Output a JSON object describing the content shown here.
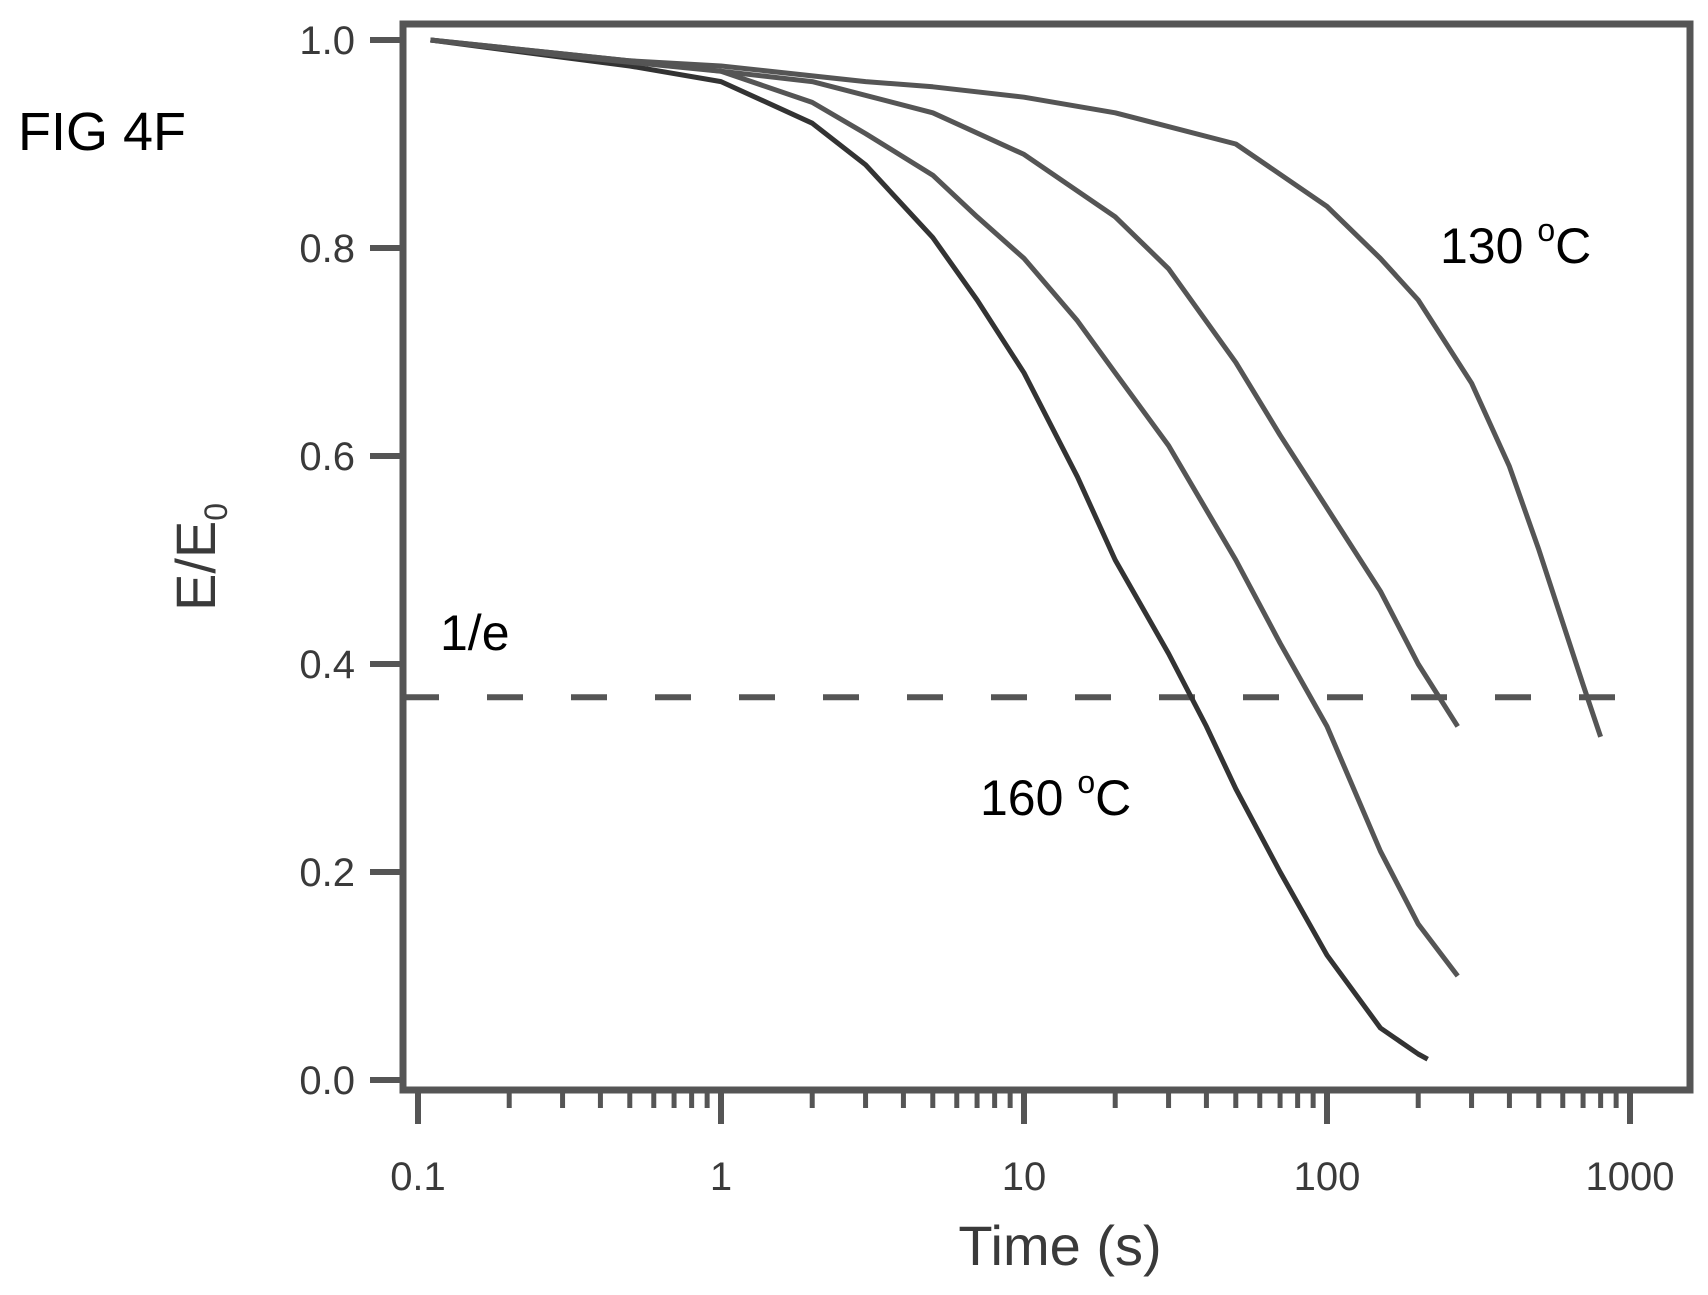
{
  "figure_label": "FIG 4F",
  "chart_data": {
    "type": "line",
    "title": "",
    "xlabel": "Time (s)",
    "ylabel": "E/E",
    "ylabel_subscript": "0",
    "xscale": "log",
    "xlim": [
      0.1,
      1000
    ],
    "ylim": [
      0.0,
      1.0
    ],
    "x_ticks": [
      0.1,
      1,
      10,
      100,
      1000
    ],
    "x_tick_labels": [
      "0.1",
      "1",
      "10",
      "100",
      "1000"
    ],
    "y_ticks": [
      0.0,
      0.2,
      0.4,
      0.6,
      0.8,
      1.0
    ],
    "y_tick_labels": [
      "0.0",
      "0.2",
      "0.4",
      "0.6",
      "0.8",
      "1.0"
    ],
    "grid": false,
    "legend": "none",
    "reference_line": {
      "y": 0.368,
      "style": "dashed",
      "label": "1/e"
    },
    "annotations": {
      "high_temp": {
        "text": "160 ",
        "sup": "o",
        "suffix": "C"
      },
      "low_temp": {
        "text": "130 ",
        "sup": "o",
        "suffix": "C"
      }
    },
    "series": [
      {
        "x": [
          0.11,
          0.2,
          0.5,
          1,
          2,
          3,
          5,
          7,
          10,
          15,
          20,
          30,
          40,
          50,
          70,
          100,
          150,
          200,
          215
        ],
        "y": [
          1.0,
          0.99,
          0.975,
          0.96,
          0.92,
          0.88,
          0.81,
          0.75,
          0.68,
          0.58,
          0.5,
          0.41,
          0.34,
          0.28,
          0.2,
          0.12,
          0.05,
          0.025,
          0.02
        ]
      },
      {
        "x": [
          0.11,
          0.3,
          1,
          2,
          3,
          5,
          7,
          10,
          15,
          20,
          30,
          50,
          70,
          100,
          150,
          200,
          270
        ],
        "y": [
          1.0,
          0.985,
          0.97,
          0.94,
          0.91,
          0.87,
          0.83,
          0.79,
          0.73,
          0.68,
          0.61,
          0.5,
          0.42,
          0.34,
          0.22,
          0.15,
          0.1
        ]
      },
      {
        "x": [
          0.11,
          0.5,
          1,
          2,
          5,
          10,
          20,
          30,
          50,
          70,
          100,
          150,
          200,
          270
        ],
        "y": [
          1.0,
          0.98,
          0.97,
          0.96,
          0.93,
          0.89,
          0.83,
          0.78,
          0.69,
          0.62,
          0.55,
          0.47,
          0.4,
          0.34
        ]
      },
      {
        "x": [
          0.11,
          0.5,
          1,
          3,
          5,
          10,
          20,
          50,
          100,
          150,
          200,
          300,
          400,
          500,
          700,
          800
        ],
        "y": [
          1.0,
          0.98,
          0.975,
          0.96,
          0.955,
          0.945,
          0.93,
          0.9,
          0.84,
          0.79,
          0.75,
          0.67,
          0.59,
          0.51,
          0.38,
          0.33
        ]
      }
    ]
  }
}
